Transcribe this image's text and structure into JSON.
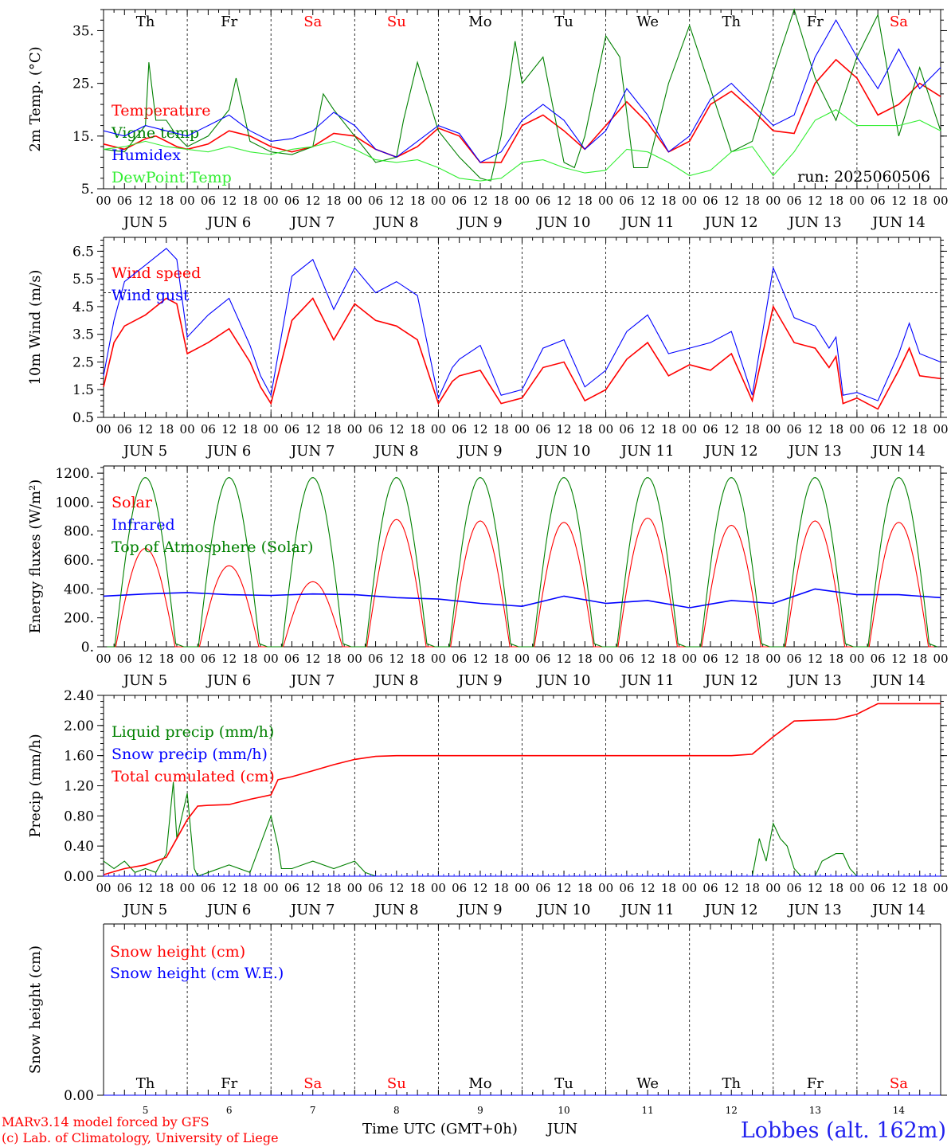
{
  "run_label": "run: 2025060506",
  "day_abbrevs": [
    "Th",
    "Fr",
    "Sa",
    "Su",
    "Mo",
    "Tu",
    "We",
    "Th",
    "Fr",
    "Sa"
  ],
  "weekend_days": [
    2,
    3,
    9
  ],
  "date_labels": [
    "JUN  5",
    "JUN  6",
    "JUN  7",
    "JUN  8",
    "JUN  9",
    "JUN 10",
    "JUN 11",
    "JUN 12",
    "JUN 13",
    "JUN 14"
  ],
  "day_numbers": [
    "5",
    "6",
    "7",
    "8",
    "9",
    "10",
    "11",
    "12",
    "13",
    "14"
  ],
  "hour_ticks": [
    "00",
    "06",
    "12",
    "18"
  ],
  "hour_end": "00",
  "footer": {
    "model": "MARv3.14 model forced by GFS",
    "credit": "(c) Lab. of Climatology, University of Liege",
    "time_axis": "Time UTC (GMT+0h)",
    "month": "JUN",
    "station": "Lobbes (alt. 162m)"
  },
  "colors": {
    "red": "#ff0000",
    "green": "#008000",
    "blue": "#0000ff",
    "light_green": "#33ee33",
    "axis": "#000000"
  },
  "chart_data": [
    {
      "type": "line",
      "ylabel": "2m Temp. (°C)",
      "ylim": [
        5,
        39
      ],
      "yticks": [
        5,
        15,
        25,
        35
      ],
      "ytick_labels": [
        "5.",
        "15.",
        "25.",
        "35."
      ],
      "x_unit": "hours since 2025-06-05 00 UTC",
      "xlim": [
        0,
        240
      ],
      "series": [
        {
          "name": "Temperature",
          "color": "#ff0000",
          "x": [
            0,
            6,
            12,
            15,
            18,
            21,
            24,
            30,
            36,
            42,
            48,
            54,
            60,
            66,
            72,
            78,
            84,
            90,
            96,
            102,
            108,
            114,
            120,
            126,
            132,
            138,
            144,
            150,
            156,
            162,
            168,
            174,
            180,
            186,
            192,
            198,
            204,
            210,
            216,
            222,
            228,
            234,
            240
          ],
          "y": [
            13.5,
            12.5,
            14.5,
            15,
            14,
            13,
            12.5,
            13.5,
            16,
            15,
            13,
            12,
            13,
            15.5,
            15,
            12.5,
            11,
            13,
            16.5,
            15,
            10,
            10,
            17,
            19,
            16,
            12.5,
            17,
            21.5,
            17.5,
            12,
            14,
            21,
            23.5,
            20,
            16,
            15.5,
            25,
            29.5,
            26,
            19,
            21,
            25,
            22.5
          ]
        },
        {
          "name": "Vigne temp",
          "color": "#008000",
          "x": [
            0,
            6,
            12,
            13,
            15,
            18,
            21,
            24,
            30,
            36,
            38,
            42,
            48,
            54,
            60,
            63,
            66,
            72,
            78,
            84,
            86,
            90,
            96,
            102,
            108,
            111,
            114,
            118,
            120,
            126,
            129,
            132,
            135,
            138,
            144,
            148,
            152,
            156,
            162,
            168,
            174,
            180,
            186,
            192,
            198,
            204,
            210,
            216,
            222,
            228,
            234,
            240
          ],
          "y": [
            12.5,
            12,
            17,
            29,
            18,
            18,
            15,
            13,
            15,
            20,
            26,
            14,
            12,
            11.5,
            13,
            23,
            20,
            15,
            10,
            11,
            18,
            29,
            16,
            11,
            7,
            6.5,
            15,
            33,
            25,
            30,
            20,
            10,
            9,
            15,
            34,
            30,
            9,
            9,
            25,
            36,
            24,
            12,
            14,
            27,
            40,
            26,
            18,
            30,
            38,
            15,
            28,
            16
          ]
        },
        {
          "name": "Humidex",
          "color": "#0000ff",
          "x": [
            0,
            6,
            12,
            18,
            24,
            30,
            36,
            42,
            48,
            54,
            60,
            66,
            72,
            78,
            84,
            90,
            96,
            102,
            108,
            114,
            120,
            126,
            132,
            138,
            144,
            150,
            156,
            162,
            168,
            174,
            180,
            186,
            192,
            198,
            204,
            210,
            216,
            222,
            228,
            234,
            240
          ],
          "y": [
            16,
            15,
            17,
            16,
            15,
            17,
            19,
            16,
            14,
            14.5,
            16,
            19.5,
            17,
            12.5,
            11,
            14,
            17,
            15.5,
            10,
            12,
            18,
            21,
            18,
            12.5,
            16,
            24,
            19,
            12,
            15,
            22,
            25,
            21,
            17,
            19,
            30,
            37,
            30,
            24,
            31.5,
            24,
            28
          ]
        },
        {
          "name": "DewPoint Temp",
          "color": "#33ee33",
          "x": [
            0,
            6,
            12,
            18,
            24,
            30,
            36,
            42,
            48,
            54,
            60,
            66,
            72,
            78,
            84,
            90,
            96,
            102,
            108,
            114,
            120,
            126,
            132,
            138,
            144,
            150,
            156,
            162,
            168,
            174,
            180,
            186,
            192,
            198,
            204,
            210,
            216,
            222,
            228,
            234,
            240
          ],
          "y": [
            12.5,
            13,
            14,
            13,
            12.5,
            12,
            13,
            12,
            11.5,
            12.5,
            13,
            14,
            12.5,
            10.5,
            10,
            10.5,
            9,
            7,
            6.5,
            7,
            10,
            10.5,
            9,
            8,
            8.5,
            12.5,
            12,
            10,
            7.5,
            8.5,
            12,
            13,
            7.5,
            12,
            18,
            20,
            17,
            17,
            17,
            18,
            16
          ]
        }
      ]
    },
    {
      "type": "line",
      "ylabel": "10m Wind (m/s)",
      "ylim": [
        0.5,
        7.0
      ],
      "yticks": [
        0.5,
        1.5,
        2.5,
        3.5,
        4.5,
        5.5,
        6.5
      ],
      "ytick_labels": [
        "0.5",
        "1.5",
        "2.5",
        "3.5",
        "4.5",
        "5.5",
        "6.5"
      ],
      "reference_line": 5.0,
      "xlim": [
        0,
        240
      ],
      "series": [
        {
          "name": "Wind speed",
          "color": "#ff0000",
          "x": [
            0,
            3,
            6,
            12,
            18,
            21,
            24,
            30,
            36,
            42,
            45,
            48,
            54,
            60,
            66,
            72,
            78,
            84,
            90,
            96,
            100,
            102,
            108,
            114,
            120,
            126,
            132,
            138,
            144,
            150,
            156,
            162,
            168,
            174,
            180,
            186,
            192,
            198,
            204,
            208,
            210,
            212,
            216,
            222,
            228,
            231,
            234,
            240
          ],
          "y": [
            1.6,
            3.2,
            3.8,
            4.2,
            4.8,
            4.6,
            2.8,
            3.2,
            3.7,
            2.5,
            1.6,
            1.0,
            4.0,
            4.8,
            3.3,
            4.6,
            4.0,
            3.8,
            3.3,
            1.0,
            1.8,
            2.0,
            2.2,
            1.0,
            1.2,
            2.3,
            2.5,
            1.1,
            1.5,
            2.6,
            3.2,
            2.0,
            2.4,
            2.2,
            2.8,
            1.1,
            4.5,
            3.2,
            3.0,
            2.3,
            2.7,
            1.0,
            1.2,
            0.8,
            2.2,
            3.0,
            2.0,
            1.9
          ]
        },
        {
          "name": "Wind gust",
          "color": "#0000ff",
          "x": [
            0,
            3,
            6,
            12,
            15,
            18,
            21,
            24,
            30,
            36,
            42,
            45,
            48,
            54,
            60,
            66,
            72,
            78,
            84,
            90,
            96,
            100,
            102,
            108,
            114,
            120,
            126,
            132,
            138,
            144,
            150,
            156,
            162,
            168,
            174,
            180,
            186,
            192,
            198,
            204,
            208,
            210,
            212,
            216,
            222,
            228,
            231,
            234,
            240
          ],
          "y": [
            2.0,
            4.0,
            5.4,
            6.0,
            6.3,
            6.6,
            6.2,
            3.4,
            4.2,
            4.8,
            3.1,
            2.0,
            1.3,
            5.6,
            6.2,
            4.4,
            5.9,
            5.0,
            5.4,
            4.9,
            1.2,
            2.3,
            2.6,
            3.1,
            1.3,
            1.5,
            3.0,
            3.3,
            1.6,
            2.2,
            3.6,
            4.2,
            2.8,
            3.0,
            3.2,
            3.6,
            1.3,
            5.9,
            4.1,
            3.8,
            3.0,
            3.4,
            1.3,
            1.4,
            1.1,
            2.8,
            3.9,
            2.8,
            2.5
          ]
        }
      ]
    },
    {
      "type": "line",
      "ylabel": "Energy fluxes (W/m²)",
      "ylim": [
        0,
        1250
      ],
      "yticks": [
        0,
        200,
        400,
        600,
        800,
        1000,
        1200
      ],
      "ytick_labels": [
        "0.",
        "200.",
        "400.",
        "600.",
        "800.",
        "1000.",
        "1200."
      ],
      "xlim": [
        0,
        240
      ],
      "series": [
        {
          "name": "Solar",
          "color": "#ff0000",
          "peaks": [
            680,
            560,
            450,
            880,
            870,
            860,
            890,
            840,
            870,
            860
          ]
        },
        {
          "name": "Infrared",
          "color": "#0000ff",
          "x": [
            0,
            12,
            24,
            36,
            48,
            60,
            72,
            84,
            96,
            108,
            120,
            132,
            144,
            156,
            168,
            180,
            192,
            204,
            216,
            228,
            240
          ],
          "y": [
            350,
            365,
            375,
            360,
            355,
            365,
            360,
            340,
            330,
            300,
            280,
            350,
            300,
            320,
            270,
            320,
            300,
            400,
            360,
            360,
            340
          ]
        },
        {
          "name": "Top of Atmosphere (Solar)",
          "color": "#008000",
          "peak": 1170
        }
      ]
    },
    {
      "type": "line",
      "ylabel": "Precip (mm/h)",
      "ylim": [
        0,
        2.4
      ],
      "yticks": [
        0,
        0.4,
        0.8,
        1.2,
        1.6,
        2.0,
        2.4
      ],
      "ytick_labels": [
        "0.00",
        "0.40",
        "0.80",
        "1.20",
        "1.60",
        "2.00",
        "2.40"
      ],
      "xlim": [
        0,
        240
      ],
      "series": [
        {
          "name": "Liquid precip (mm/h)",
          "color": "#008000",
          "x": [
            0,
            3,
            6,
            9,
            12,
            15,
            18,
            20,
            21,
            22,
            24,
            26,
            27,
            30,
            36,
            42,
            48,
            50,
            51,
            54,
            60,
            66,
            72,
            75,
            78,
            80,
            84,
            186,
            188,
            190,
            192,
            194,
            196,
            198,
            200,
            204,
            206,
            210,
            212,
            214,
            216,
            218
          ],
          "y": [
            0.2,
            0.1,
            0.2,
            0.05,
            0.1,
            0.05,
            0.3,
            1.25,
            0.5,
            0.7,
            1.1,
            0.1,
            0,
            0.05,
            0.15,
            0.05,
            0.8,
            0.4,
            0.1,
            0.1,
            0.2,
            0.1,
            0.2,
            0.05,
            0,
            0,
            0,
            0,
            0.5,
            0.2,
            0.7,
            0.5,
            0.4,
            0.1,
            0,
            0,
            0.2,
            0.3,
            0.3,
            0.1,
            0,
            0
          ]
        },
        {
          "name": "Snow precip (mm/h)",
          "color": "#0000ff",
          "x": [
            0,
            240
          ],
          "y": [
            0,
            0
          ]
        },
        {
          "name": "Total cumulated (cm)",
          "color": "#ff0000",
          "x": [
            0,
            6,
            12,
            18,
            21,
            24,
            27,
            30,
            36,
            42,
            48,
            50,
            54,
            60,
            66,
            72,
            78,
            84,
            120,
            150,
            180,
            186,
            192,
            198,
            204,
            210,
            216,
            222,
            228,
            234,
            240
          ],
          "y": [
            0.02,
            0.1,
            0.15,
            0.25,
            0.5,
            0.75,
            0.93,
            0.94,
            0.95,
            1.02,
            1.08,
            1.28,
            1.32,
            1.4,
            1.48,
            1.55,
            1.59,
            1.6,
            1.6,
            1.6,
            1.6,
            1.62,
            1.85,
            2.06,
            2.07,
            2.08,
            2.15,
            2.29,
            2.29,
            2.29,
            2.29
          ]
        }
      ]
    },
    {
      "type": "line",
      "ylabel": "Snow height (cm)",
      "ylim": [
        0,
        1
      ],
      "yticks": [
        0
      ],
      "ytick_labels": [
        "0.00"
      ],
      "xlim": [
        0,
        240
      ],
      "series": [
        {
          "name": "Snow height (cm)",
          "color": "#ff0000",
          "x": [
            0,
            240
          ],
          "y": [
            0,
            0
          ]
        },
        {
          "name": "Snow height (cm W.E.)",
          "color": "#0000ff",
          "x": [
            0,
            240
          ],
          "y": [
            0,
            0
          ]
        }
      ]
    }
  ]
}
